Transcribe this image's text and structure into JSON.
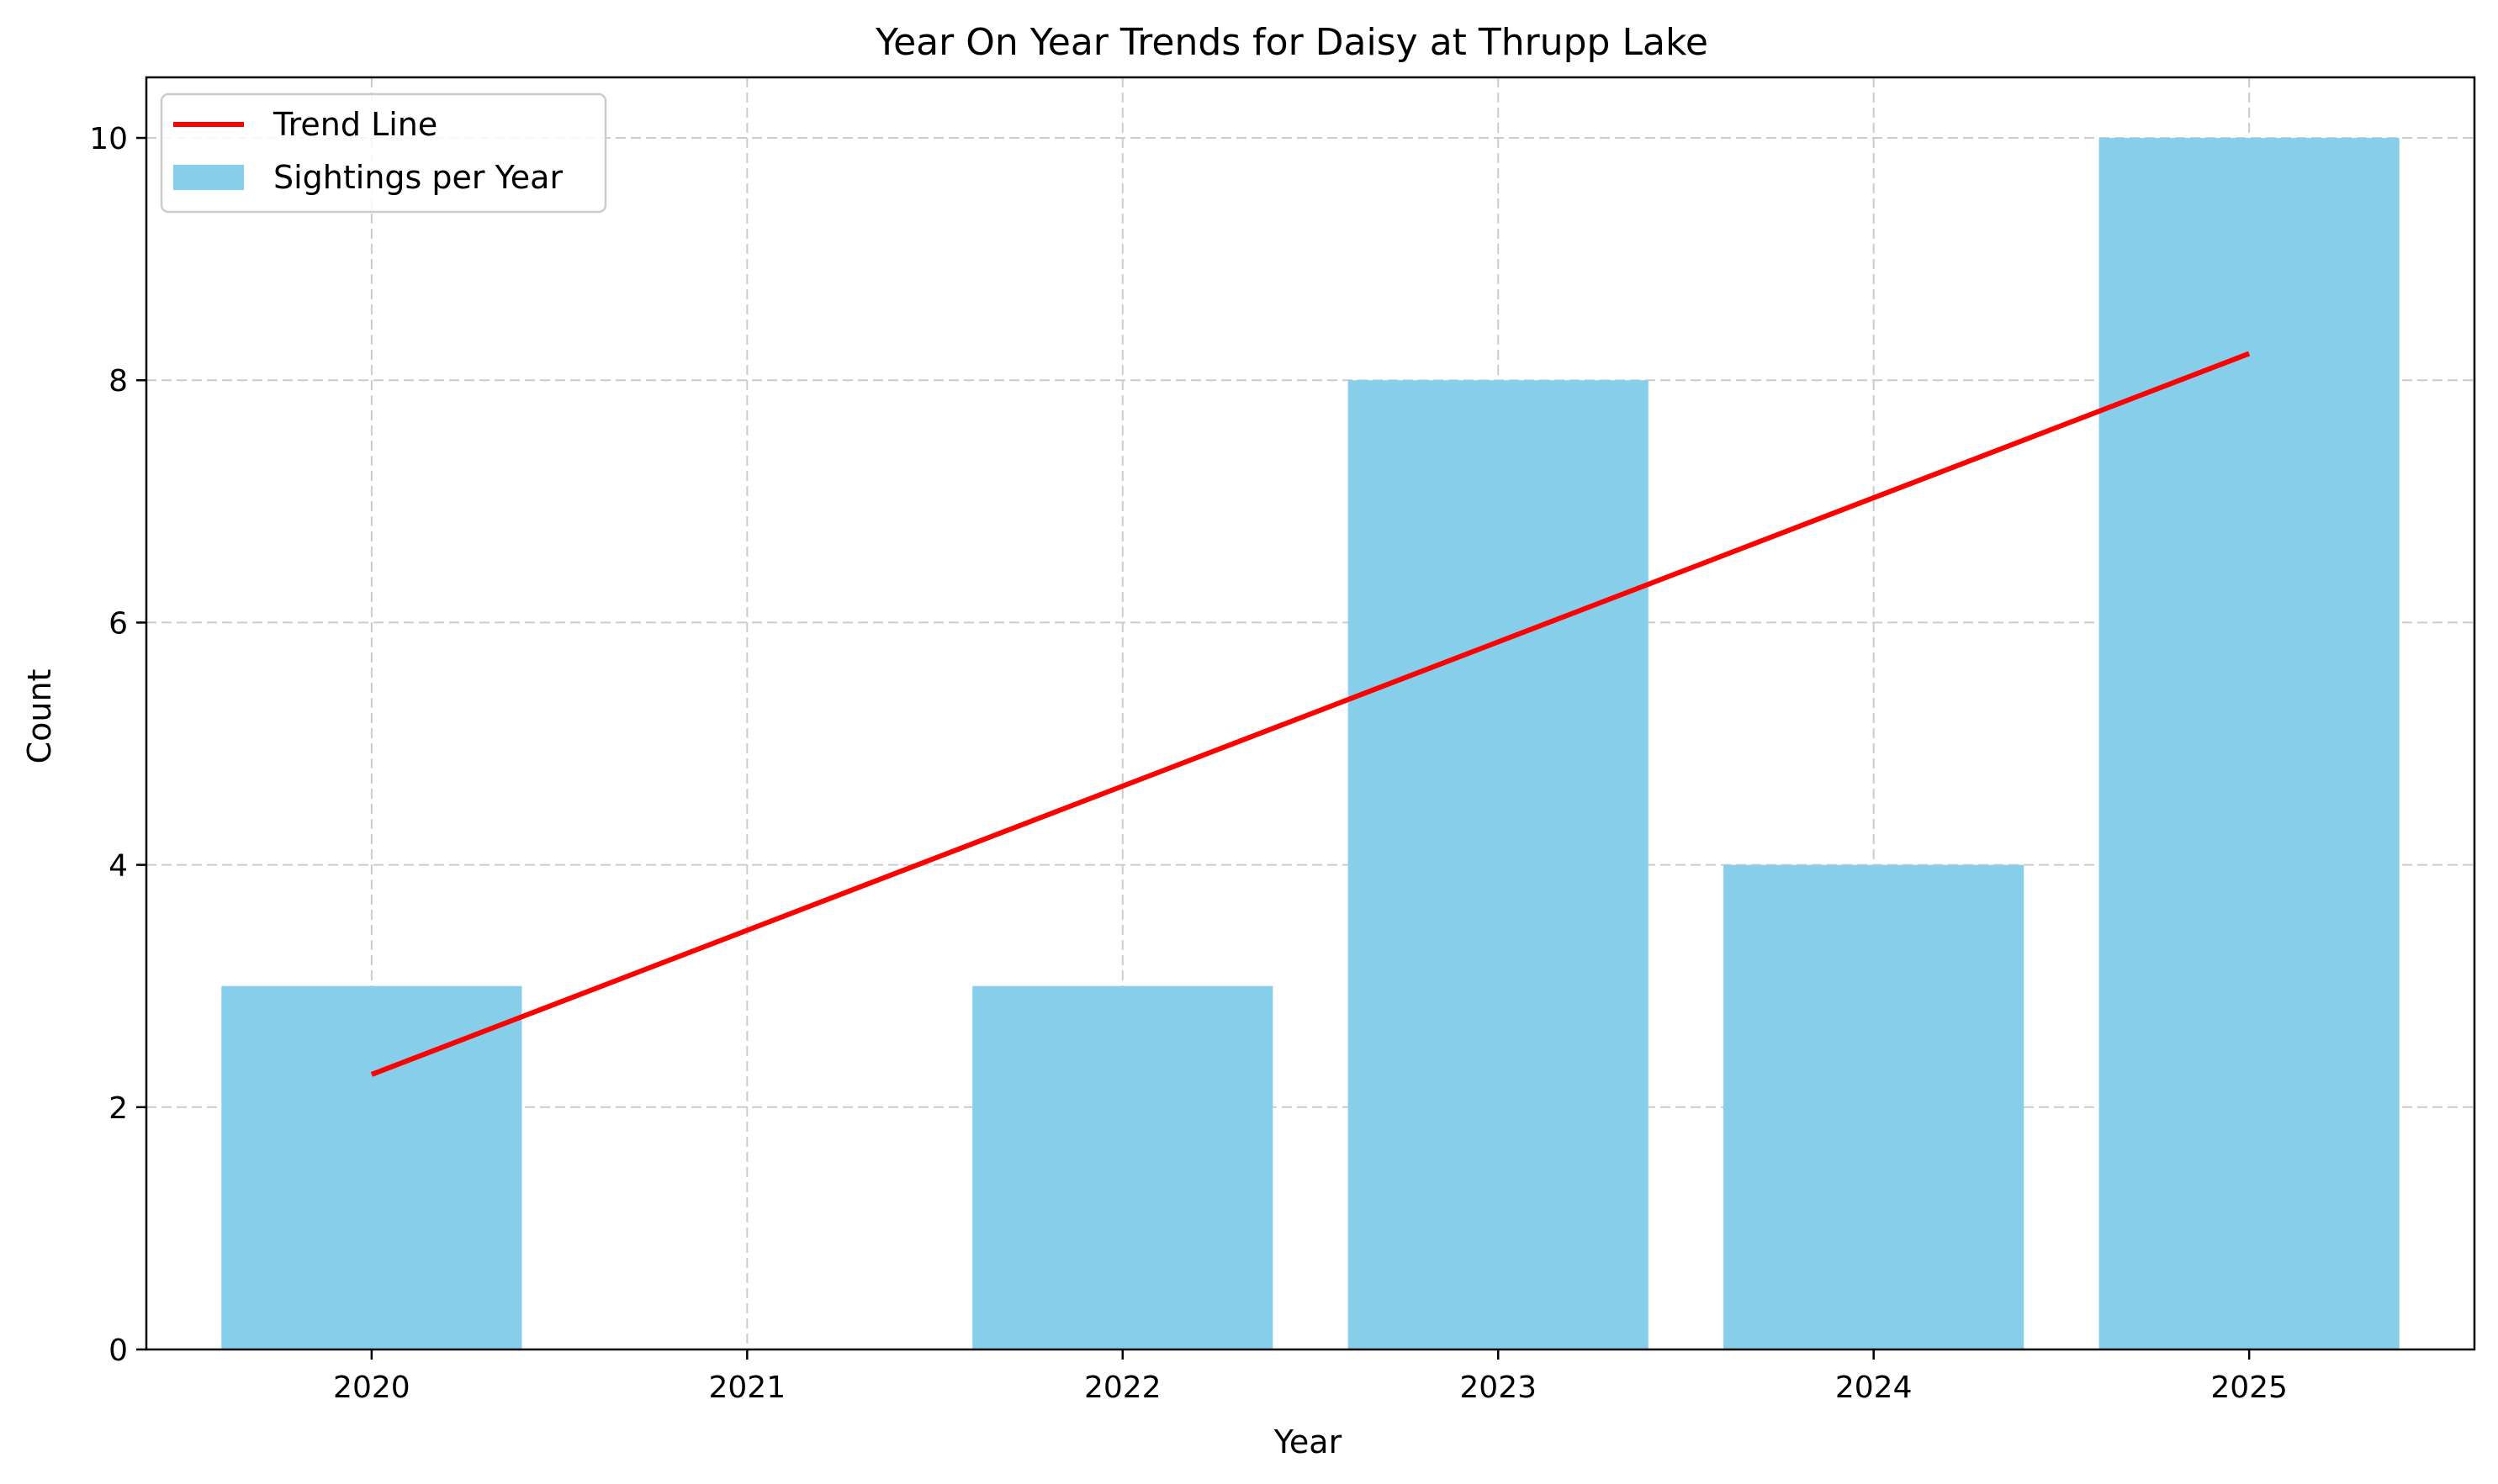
{
  "chart_data": {
    "type": "bar",
    "title": "Year On Year Trends for Daisy at Thrupp Lake",
    "xlabel": "Year",
    "ylabel": "Count",
    "categories": [
      "2020",
      "2021",
      "2022",
      "2023",
      "2024",
      "2025"
    ],
    "series": [
      {
        "name": "Sightings per Year",
        "type": "bar",
        "values": [
          3,
          0,
          3,
          8,
          4,
          10
        ],
        "color": "#87CEEB"
      },
      {
        "name": "Trend Line",
        "type": "line",
        "x": [
          "2020",
          "2025"
        ],
        "values": [
          2.27,
          8.22
        ],
        "color": "#FF0000"
      }
    ],
    "ylim": [
      0,
      10.5
    ],
    "yticks": [
      0,
      2,
      4,
      6,
      8,
      10
    ],
    "grid": true,
    "legend_position": "top-left"
  }
}
